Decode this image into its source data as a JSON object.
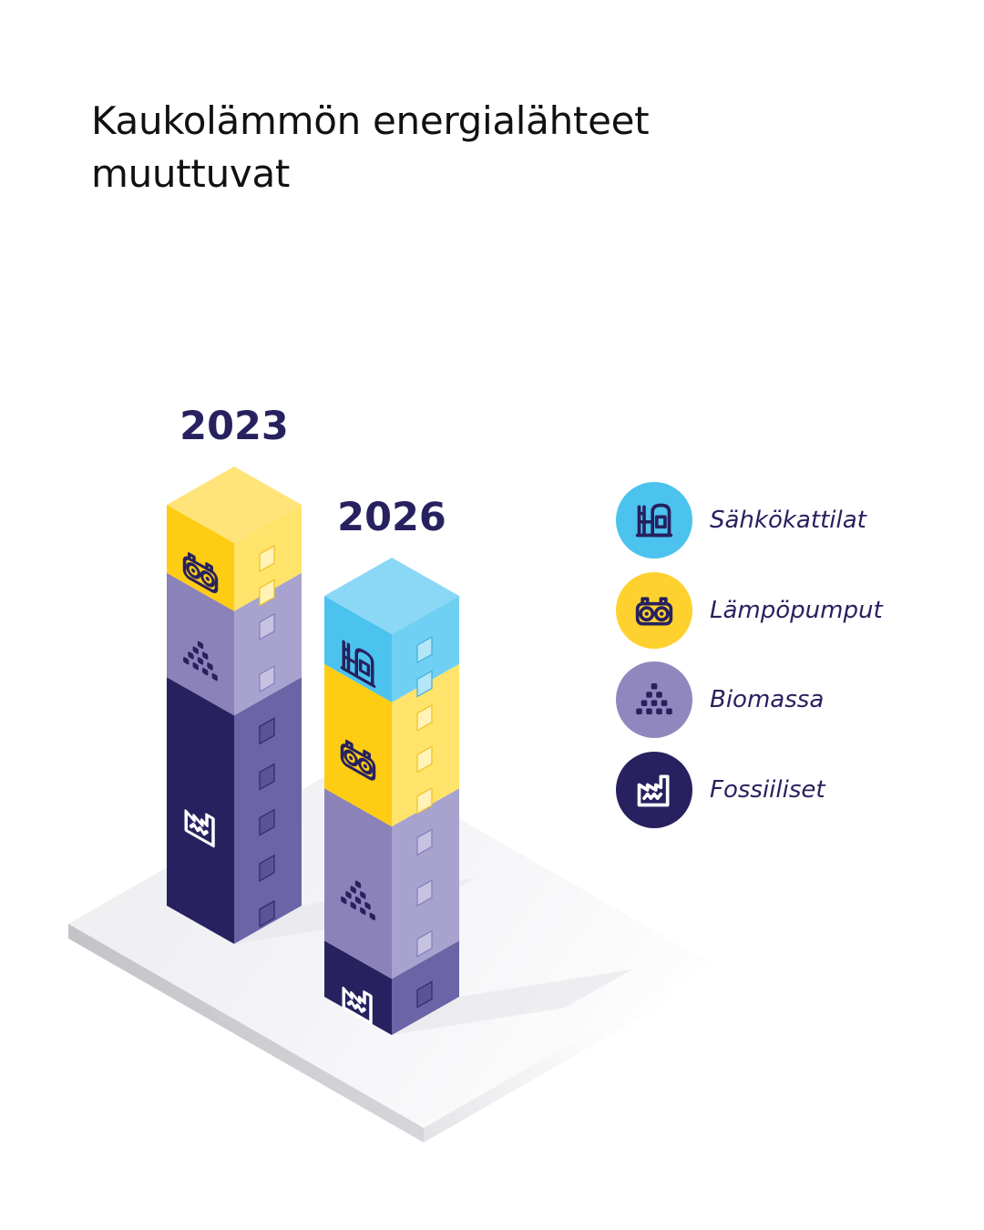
{
  "title": {
    "line1": "Kaukolämmön energialähteet",
    "line2": "muuttuvat"
  },
  "legend": [
    {
      "key": "sahkokattilat",
      "label": "Sähkökattilat",
      "color": "#4cc3ee",
      "icon": "electric-boiler-icon",
      "icon_color": "#27215f"
    },
    {
      "key": "lampopumput",
      "label": "Lämpöpumput",
      "color": "#ffd12e",
      "icon": "heat-pump-icon",
      "icon_color": "#27215f"
    },
    {
      "key": "biomassa",
      "label": "Biomassa",
      "color": "#8f87bd",
      "icon": "biomass-icon",
      "icon_color": "#27215f"
    },
    {
      "key": "fossiiliset",
      "label": "Fossiiliset",
      "color": "#27215f",
      "icon": "factory-icon",
      "icon_color": "#ffffff"
    }
  ],
  "chart_data": {
    "type": "bar",
    "stacked": true,
    "categories": [
      "2023",
      "2026"
    ],
    "series": [
      {
        "name": "Fossiiliset",
        "values": [
          57,
          14
        ]
      },
      {
        "name": "Biomassa",
        "values": [
          26,
          38
        ]
      },
      {
        "name": "Lämpöpumput",
        "values": [
          17,
          31
        ]
      },
      {
        "name": "Sähkökattilat",
        "values": [
          0,
          17
        ]
      }
    ],
    "legend_position": "right",
    "grid": false,
    "style": "isometric-3d-towers"
  }
}
